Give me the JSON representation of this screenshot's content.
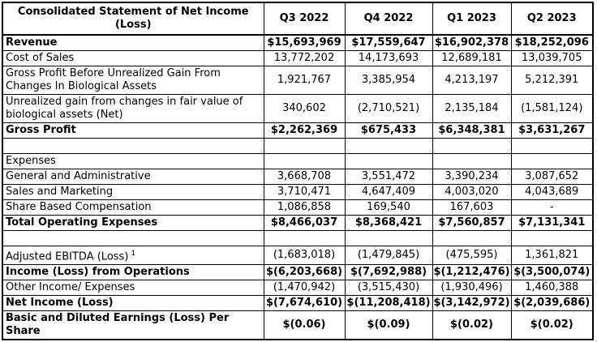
{
  "colors": {
    "text": "#000000",
    "border": "#000000",
    "background": "#ffffff"
  },
  "chart_data": {
    "type": "table",
    "title": "Consolidated Statement of Net Income (Loss)",
    "columns": [
      "Q3 2022",
      "Q4 2022",
      "Q1 2023",
      "Q2 2023"
    ],
    "rows": [
      {
        "label": "Revenue",
        "bold": true,
        "values": [
          "$15,693,969",
          "$17,559,647",
          "$16,902,378",
          "$18,252,096"
        ]
      },
      {
        "label": "Cost of Sales",
        "bold": false,
        "values": [
          "13,772,202",
          "14,173,693",
          "12,689,181",
          "13,039,705"
        ]
      },
      {
        "label": "Gross Profit Before Unrealized Gain From Changes In Biological Assets",
        "bold": false,
        "values": [
          "1,921,767",
          "3,385,954",
          "4,213,197",
          "5,212,391"
        ]
      },
      {
        "label": "Unrealized gain from changes in fair value of biological assets (Net)",
        "bold": false,
        "values": [
          "340,602",
          "(2,710,521)",
          "2,135,184",
          "(1,581,124)"
        ]
      },
      {
        "label": "Gross Profit",
        "bold": true,
        "values": [
          "$2,262,369",
          "$675,433",
          "$6,348,381",
          "$3,631,267"
        ]
      },
      {
        "label": "",
        "bold": false,
        "values": [
          "",
          "",
          "",
          ""
        ]
      },
      {
        "label": "Expenses",
        "bold": false,
        "values": [
          "",
          "",
          "",
          ""
        ]
      },
      {
        "label": "General and Administrative",
        "bold": false,
        "values": [
          "3,668,708",
          "3,551,472",
          "3,390,234",
          "3,087,652"
        ]
      },
      {
        "label": "Sales and Marketing",
        "bold": false,
        "values": [
          "3,710,471",
          "4,647,409",
          "4,003,020",
          "4,043,689"
        ]
      },
      {
        "label": "Share Based Compensation",
        "bold": false,
        "values": [
          "1,086,858",
          "169,540",
          "167,603",
          "-"
        ]
      },
      {
        "label": "Total Operating Expenses",
        "bold": true,
        "values": [
          "$8,466,037",
          "$8,368,421",
          "$7,560,857",
          "$7,131,341"
        ]
      },
      {
        "label": "",
        "bold": false,
        "values": [
          "",
          "",
          "",
          ""
        ]
      },
      {
        "label": "Adjusted EBITDA (Loss)",
        "sup": "1",
        "bold": false,
        "values": [
          "(1,683,018)",
          "(1,479,845)",
          "(475,595)",
          "1,361,821"
        ]
      },
      {
        "label": "Income (Loss) from Operations",
        "bold": true,
        "values": [
          "$(6,203,668)",
          "$(7,692,988)",
          "$(1,212,476)",
          "$(3,500,074)"
        ]
      },
      {
        "label": "Other Income/ Expenses",
        "bold": false,
        "values": [
          "(1,470,942)",
          "(3,515,430)",
          "(1,930,496)",
          "1,460,388"
        ]
      },
      {
        "label": "Net Income (Loss)",
        "bold": true,
        "values": [
          "$(7,674,610)",
          "$(11,208,418)",
          "$(3,142,972)",
          "$(2,039,686)"
        ]
      },
      {
        "label": "Basic and Diluted Earnings (Loss) Per Share",
        "bold": true,
        "values": [
          "$(0.06)",
          "$(0.09)",
          "$(0.02)",
          "$(0.02)"
        ]
      }
    ]
  }
}
